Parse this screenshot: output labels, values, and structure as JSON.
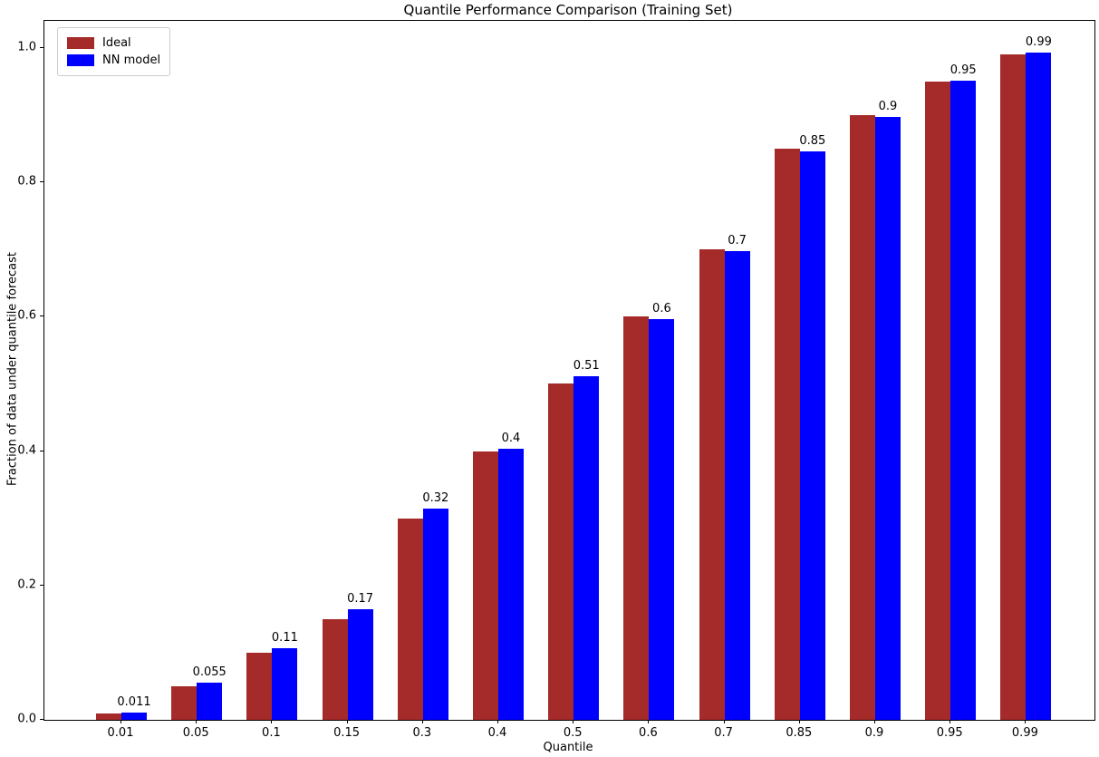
{
  "chart_data": {
    "type": "bar",
    "title": "Quantile Performance Comparison (Training Set)",
    "xlabel": "Quantile",
    "ylabel": "Fraction of data under quantile forecast",
    "categories": [
      "0.01",
      "0.05",
      "0.1",
      "0.15",
      "0.3",
      "0.4",
      "0.5",
      "0.6",
      "0.7",
      "0.85",
      "0.9",
      "0.95",
      "0.99"
    ],
    "series": [
      {
        "name": "Ideal",
        "color": "#A52A2A",
        "values": [
          0.01,
          0.05,
          0.1,
          0.15,
          0.3,
          0.4,
          0.5,
          0.6,
          0.7,
          0.85,
          0.9,
          0.95,
          0.99
        ]
      },
      {
        "name": "NN model",
        "color": "#0000FF",
        "values": [
          0.011,
          0.055,
          0.107,
          0.165,
          0.315,
          0.403,
          0.512,
          0.597,
          0.698,
          0.846,
          0.897,
          0.951,
          0.993
        ],
        "bar_labels": [
          "0.011",
          "0.055",
          "0.11",
          "0.17",
          "0.32",
          "0.4",
          "0.51",
          "0.6",
          "0.7",
          "0.85",
          "0.9",
          "0.95",
          "0.99"
        ]
      }
    ],
    "ylim": [
      0.0,
      1.04
    ],
    "yticks": [
      "0.0",
      "0.2",
      "0.4",
      "0.6",
      "0.8",
      "1.0"
    ],
    "legend_position": "upper-left",
    "grid": false,
    "axis_color": "#000000",
    "background_color": "#ffffff"
  }
}
